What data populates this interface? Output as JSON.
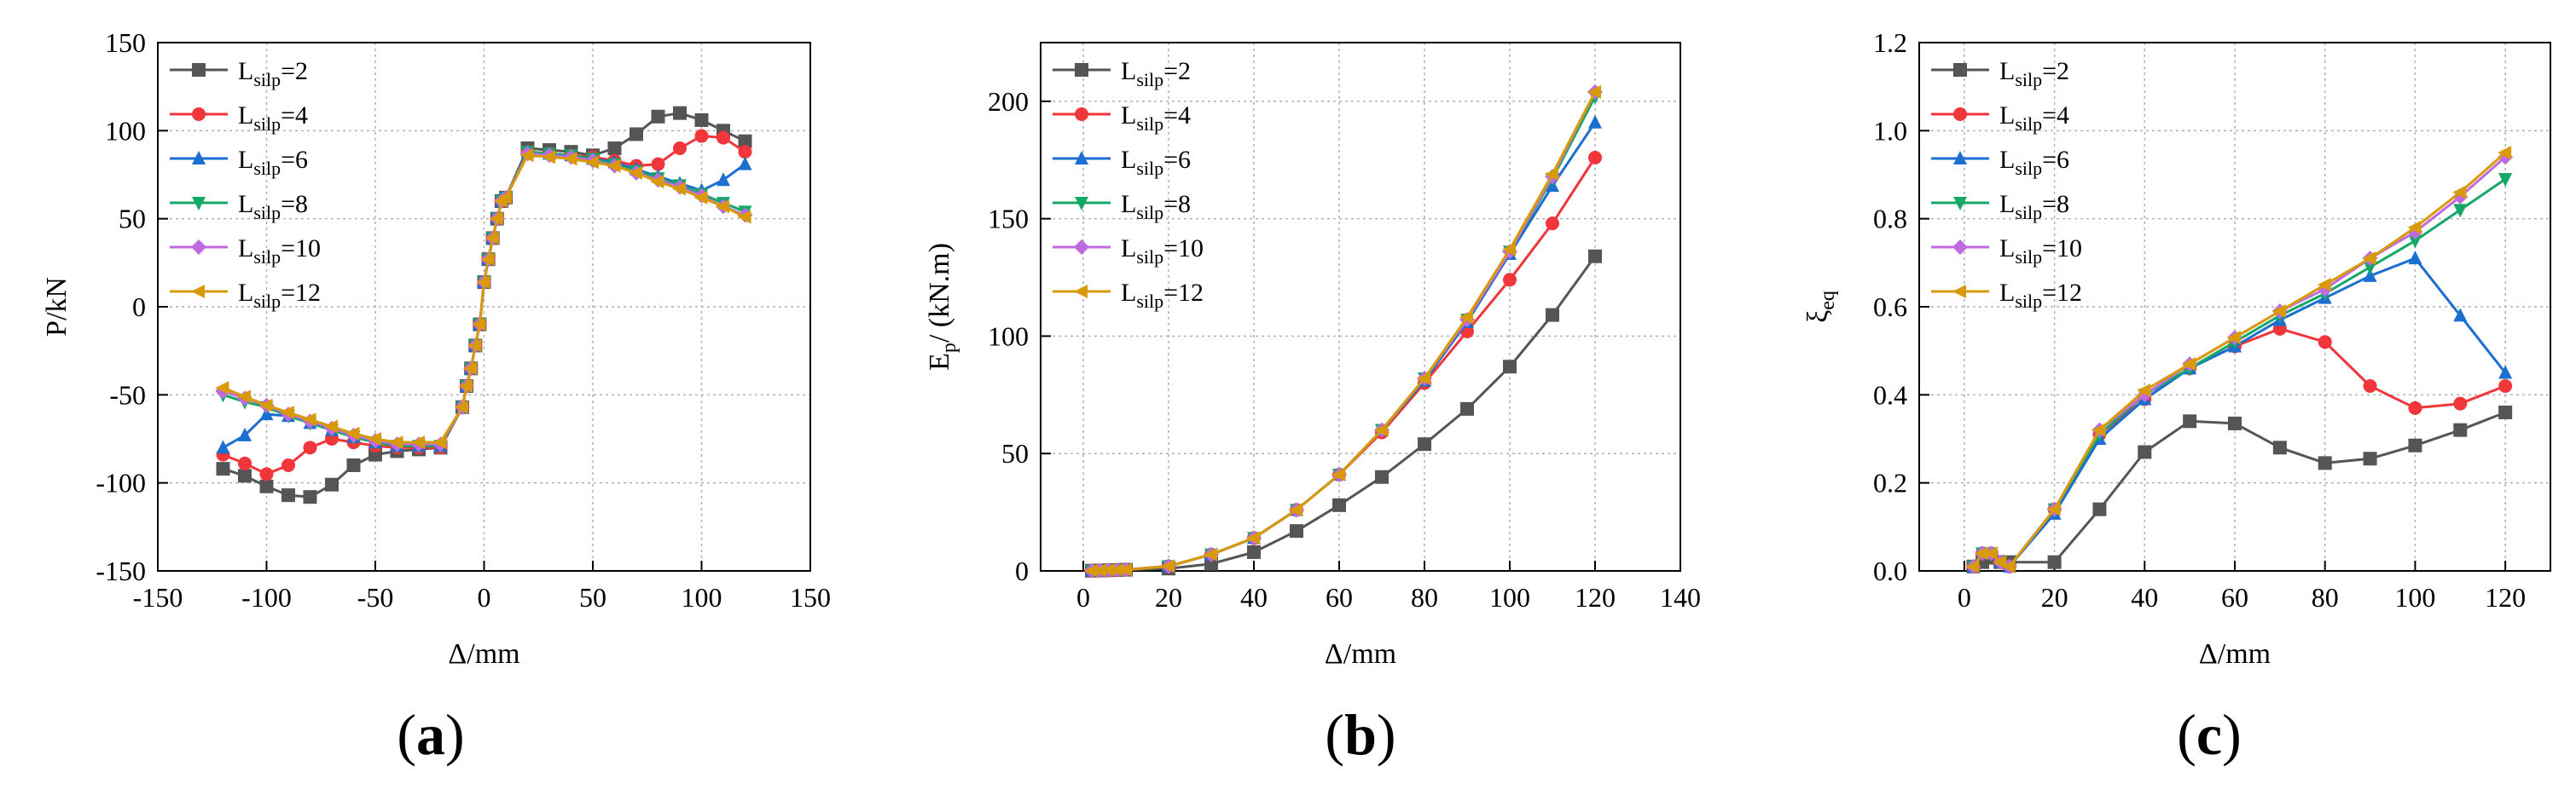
{
  "figure": {
    "legend_prefix": "L",
    "legend_subscript": "silp",
    "panels": [
      "(a)",
      "(b)",
      "(c)"
    ]
  },
  "colors": {
    "Lsilp=2": "#555555",
    "Lsilp=4": "#f0353b",
    "Lsilp=6": "#1a6fd1",
    "Lsilp=8": "#14a868",
    "Lsilp=10": "#c06ae0",
    "Lsilp=12": "#d99a08",
    "axis": "#000000",
    "grid": "#b0b0b0"
  },
  "chart_data": [
    {
      "type": "line",
      "panel_label": "(a)",
      "title": "",
      "xlabel": "Δ/mm",
      "ylabel": "P/kN",
      "xlim": [
        -150,
        150
      ],
      "ylim": [
        -150,
        150
      ],
      "xticks": [
        -150,
        -100,
        -50,
        0,
        50,
        100,
        150
      ],
      "yticks": [
        -150,
        -100,
        -50,
        0,
        50,
        100,
        150
      ],
      "xtick_labels": [
        "-150",
        "-100",
        "-50",
        "0",
        "50",
        "100",
        "150"
      ],
      "ytick_labels": [
        "-150",
        "-100",
        "-50",
        "0",
        "50",
        "100",
        "150"
      ],
      "grid": true,
      "legend": "top-left",
      "series": [
        {
          "key": "Lsilp=2",
          "suffix": "=2",
          "marker": "square",
          "x": [
            -120,
            -110,
            -100,
            -90,
            -80,
            -70,
            -60,
            -50,
            -40,
            -30,
            -20,
            -10,
            -8,
            -6,
            -4,
            -2,
            0,
            2,
            4,
            6,
            8,
            10,
            20,
            30,
            40,
            50,
            60,
            70,
            80,
            90,
            100,
            110,
            120
          ],
          "y": [
            -92,
            -96,
            -102,
            -107,
            -108,
            -101,
            -90,
            -84,
            -82,
            -81,
            -80,
            -57,
            -45,
            -35,
            -22,
            -10,
            14,
            27,
            39,
            50,
            60,
            62,
            90,
            89,
            88,
            86,
            90,
            98,
            108,
            110,
            106,
            100,
            94
          ]
        },
        {
          "key": "Lsilp=4",
          "suffix": "=4",
          "marker": "circle",
          "x": [
            -120,
            -110,
            -100,
            -90,
            -80,
            -70,
            -60,
            -50,
            -40,
            -30,
            -20,
            -10,
            -8,
            -6,
            -4,
            -2,
            0,
            2,
            4,
            6,
            8,
            10,
            20,
            30,
            40,
            50,
            60,
            70,
            80,
            90,
            100,
            110,
            120
          ],
          "y": [
            -84,
            -89,
            -95,
            -90,
            -80,
            -75,
            -77,
            -79,
            -80,
            -80,
            -80,
            -57,
            -45,
            -35,
            -22,
            -10,
            14,
            27,
            39,
            50,
            60,
            62,
            88,
            87,
            86,
            85,
            83,
            80,
            81,
            90,
            97,
            96,
            88
          ]
        },
        {
          "key": "Lsilp=6",
          "suffix": "=6",
          "marker": "triangle",
          "x": [
            -120,
            -110,
            -100,
            -90,
            -80,
            -70,
            -60,
            -50,
            -40,
            -30,
            -20,
            -10,
            -8,
            -6,
            -4,
            -2,
            0,
            2,
            4,
            6,
            8,
            10,
            20,
            30,
            40,
            50,
            60,
            70,
            80,
            90,
            100,
            110,
            120
          ],
          "y": [
            -80,
            -73,
            -61,
            -62,
            -66,
            -70,
            -74,
            -77,
            -79,
            -79,
            -79,
            -57,
            -45,
            -35,
            -22,
            -10,
            14,
            27,
            39,
            50,
            60,
            62,
            88,
            87,
            86,
            84,
            82,
            78,
            74,
            70,
            66,
            72,
            81
          ]
        },
        {
          "key": "Lsilp=8",
          "suffix": "=8",
          "marker": "triangle-down",
          "x": [
            -120,
            -110,
            -100,
            -90,
            -80,
            -70,
            -60,
            -50,
            -40,
            -30,
            -20,
            -10,
            -8,
            -6,
            -4,
            -2,
            0,
            2,
            4,
            6,
            8,
            10,
            20,
            30,
            40,
            50,
            60,
            70,
            80,
            90,
            100,
            110,
            120
          ],
          "y": [
            -50,
            -54,
            -57,
            -62,
            -66,
            -70,
            -74,
            -77,
            -79,
            -79,
            -79,
            -57,
            -45,
            -35,
            -22,
            -10,
            14,
            27,
            39,
            50,
            60,
            62,
            88,
            87,
            86,
            84,
            81,
            77,
            73,
            69,
            64,
            59,
            54
          ]
        },
        {
          "key": "Lsilp=10",
          "suffix": "=10",
          "marker": "diamond",
          "x": [
            -120,
            -110,
            -100,
            -90,
            -80,
            -70,
            -60,
            -50,
            -40,
            -30,
            -20,
            -10,
            -8,
            -6,
            -4,
            -2,
            0,
            2,
            4,
            6,
            8,
            10,
            20,
            30,
            40,
            50,
            60,
            70,
            80,
            90,
            100,
            110,
            120
          ],
          "y": [
            -48,
            -52,
            -56,
            -61,
            -65,
            -69,
            -73,
            -76,
            -78,
            -78,
            -78,
            -57,
            -45,
            -35,
            -22,
            -10,
            14,
            27,
            39,
            50,
            60,
            62,
            87,
            86,
            85,
            83,
            80,
            76,
            72,
            68,
            63,
            57,
            52
          ]
        },
        {
          "key": "Lsilp=12",
          "suffix": "=12",
          "marker": "triangle-left",
          "x": [
            -120,
            -110,
            -100,
            -90,
            -80,
            -70,
            -60,
            -50,
            -40,
            -30,
            -20,
            -10,
            -8,
            -6,
            -4,
            -2,
            0,
            2,
            4,
            6,
            8,
            10,
            20,
            30,
            40,
            50,
            60,
            70,
            80,
            90,
            100,
            110,
            120
          ],
          "y": [
            -46,
            -51,
            -56,
            -60,
            -64,
            -68,
            -72,
            -75,
            -77,
            -77,
            -77,
            -57,
            -45,
            -35,
            -22,
            -10,
            14,
            27,
            39,
            50,
            60,
            62,
            86,
            85,
            84,
            82,
            80,
            76,
            71,
            67,
            62,
            57,
            51
          ]
        }
      ]
    },
    {
      "type": "line",
      "panel_label": "(b)",
      "title": "",
      "xlabel": "Δ/mm",
      "ylabel": "E",
      "ylabel_sub": "p",
      "ylabel_rest": "/ (kN.m)",
      "xlim": [
        -10,
        140
      ],
      "ylim": [
        0,
        225
      ],
      "xticks": [
        0,
        20,
        40,
        60,
        80,
        100,
        120,
        140
      ],
      "yticks": [
        0,
        50,
        100,
        150,
        200
      ],
      "xtick_labels": [
        "0",
        "20",
        "40",
        "60",
        "80",
        "100",
        "120",
        "140"
      ],
      "ytick_labels": [
        "0",
        "50",
        "100",
        "150",
        "200"
      ],
      "grid": true,
      "legend": "top-left",
      "series": [
        {
          "key": "Lsilp=2",
          "suffix": "=2",
          "marker": "square",
          "x": [
            2,
            4,
            6,
            8,
            10,
            20,
            30,
            40,
            50,
            60,
            70,
            80,
            90,
            100,
            110,
            120
          ],
          "y": [
            0.1,
            0.2,
            0.3,
            0.4,
            0.5,
            1,
            3,
            8,
            17,
            28,
            40,
            54,
            69,
            87,
            109,
            134
          ]
        },
        {
          "key": "Lsilp=4",
          "suffix": "=4",
          "marker": "circle",
          "x": [
            2,
            4,
            6,
            8,
            10,
            20,
            30,
            40,
            50,
            60,
            70,
            80,
            90,
            100,
            110,
            120
          ],
          "y": [
            0.1,
            0.2,
            0.3,
            0.4,
            0.5,
            2,
            7,
            14,
            26,
            41,
            59,
            80,
            102,
            124,
            148,
            176
          ]
        },
        {
          "key": "Lsilp=6",
          "suffix": "=6",
          "marker": "triangle",
          "x": [
            2,
            4,
            6,
            8,
            10,
            20,
            30,
            40,
            50,
            60,
            70,
            80,
            90,
            100,
            110,
            120
          ],
          "y": [
            0.1,
            0.2,
            0.3,
            0.4,
            0.5,
            2,
            7,
            14,
            26,
            41,
            60,
            81,
            106,
            135,
            164,
            191
          ]
        },
        {
          "key": "Lsilp=8",
          "suffix": "=8",
          "marker": "triangle-down",
          "x": [
            2,
            4,
            6,
            8,
            10,
            20,
            30,
            40,
            50,
            60,
            70,
            80,
            90,
            100,
            110,
            120
          ],
          "y": [
            0.1,
            0.2,
            0.3,
            0.4,
            0.5,
            2,
            7,
            14,
            26,
            41,
            60,
            82,
            107,
            136,
            167,
            202
          ]
        },
        {
          "key": "Lsilp=10",
          "suffix": "=10",
          "marker": "diamond",
          "x": [
            2,
            4,
            6,
            8,
            10,
            20,
            30,
            40,
            50,
            60,
            70,
            80,
            90,
            100,
            110,
            120
          ],
          "y": [
            0.1,
            0.2,
            0.3,
            0.4,
            0.5,
            2,
            7,
            14,
            26,
            41,
            60,
            82,
            107,
            136,
            168,
            204
          ]
        },
        {
          "key": "Lsilp=12",
          "suffix": "=12",
          "marker": "triangle-left",
          "x": [
            2,
            4,
            6,
            8,
            10,
            20,
            30,
            40,
            50,
            60,
            70,
            80,
            90,
            100,
            110,
            120
          ],
          "y": [
            0.1,
            0.2,
            0.3,
            0.4,
            0.5,
            2,
            7,
            14,
            26,
            41,
            60,
            82,
            108,
            137,
            169,
            204
          ]
        }
      ]
    },
    {
      "type": "line",
      "panel_label": "(c)",
      "title": "",
      "xlabel": "Δ/mm",
      "ylabel": "ξ",
      "ylabel_sub": "eq",
      "ylabel_rest": "",
      "xlim": [
        -10,
        130
      ],
      "ylim": [
        0,
        1.2
      ],
      "xticks": [
        0,
        20,
        40,
        60,
        80,
        100,
        120
      ],
      "yticks": [
        0,
        0.2,
        0.4,
        0.6,
        0.8,
        1.0,
        1.2
      ],
      "xtick_labels": [
        "0",
        "20",
        "40",
        "60",
        "80",
        "100",
        "120"
      ],
      "ytick_labels": [
        "0.0",
        "0.2",
        "0.4",
        "0.6",
        "0.8",
        "1.0",
        "1.2"
      ],
      "grid": true,
      "legend": "top-left",
      "series": [
        {
          "key": "Lsilp=2",
          "suffix": "=2",
          "marker": "square",
          "x": [
            2,
            4,
            6,
            8,
            10,
            20,
            30,
            40,
            50,
            60,
            70,
            80,
            90,
            100,
            110,
            120
          ],
          "y": [
            0.01,
            0.02,
            0.03,
            0.02,
            0.02,
            0.02,
            0.14,
            0.27,
            0.34,
            0.335,
            0.28,
            0.245,
            0.255,
            0.285,
            0.32,
            0.36
          ]
        },
        {
          "key": "Lsilp=4",
          "suffix": "=4",
          "marker": "circle",
          "x": [
            2,
            4,
            6,
            8,
            10,
            20,
            30,
            40,
            50,
            60,
            70,
            80,
            90,
            100,
            110,
            120
          ],
          "y": [
            0.01,
            0.04,
            0.04,
            0.02,
            0.01,
            0.14,
            0.31,
            0.39,
            0.46,
            0.51,
            0.55,
            0.52,
            0.42,
            0.37,
            0.38,
            0.42
          ]
        },
        {
          "key": "Lsilp=6",
          "suffix": "=6",
          "marker": "triangle",
          "x": [
            2,
            4,
            6,
            8,
            10,
            20,
            30,
            40,
            50,
            60,
            70,
            80,
            90,
            100,
            110,
            120
          ],
          "y": [
            0.01,
            0.04,
            0.04,
            0.02,
            0.01,
            0.13,
            0.3,
            0.39,
            0.46,
            0.51,
            0.57,
            0.62,
            0.67,
            0.71,
            0.58,
            0.45
          ]
        },
        {
          "key": "Lsilp=8",
          "suffix": "=8",
          "marker": "triangle-down",
          "x": [
            2,
            4,
            6,
            8,
            10,
            20,
            30,
            40,
            50,
            60,
            70,
            80,
            90,
            100,
            110,
            120
          ],
          "y": [
            0.01,
            0.04,
            0.04,
            0.02,
            0.01,
            0.14,
            0.31,
            0.4,
            0.46,
            0.52,
            0.58,
            0.63,
            0.69,
            0.75,
            0.82,
            0.89
          ]
        },
        {
          "key": "Lsilp=10",
          "suffix": "=10",
          "marker": "diamond",
          "x": [
            2,
            4,
            6,
            8,
            10,
            20,
            30,
            40,
            50,
            60,
            70,
            80,
            90,
            100,
            110,
            120
          ],
          "y": [
            0.01,
            0.04,
            0.04,
            0.02,
            0.01,
            0.14,
            0.32,
            0.4,
            0.47,
            0.53,
            0.59,
            0.64,
            0.71,
            0.77,
            0.85,
            0.94
          ]
        },
        {
          "key": "Lsilp=12",
          "suffix": "=12",
          "marker": "triangle-left",
          "x": [
            2,
            4,
            6,
            8,
            10,
            20,
            30,
            40,
            50,
            60,
            70,
            80,
            90,
            100,
            110,
            120
          ],
          "y": [
            0.01,
            0.04,
            0.04,
            0.02,
            0.01,
            0.14,
            0.32,
            0.41,
            0.47,
            0.53,
            0.59,
            0.65,
            0.71,
            0.78,
            0.86,
            0.95
          ]
        }
      ]
    }
  ]
}
